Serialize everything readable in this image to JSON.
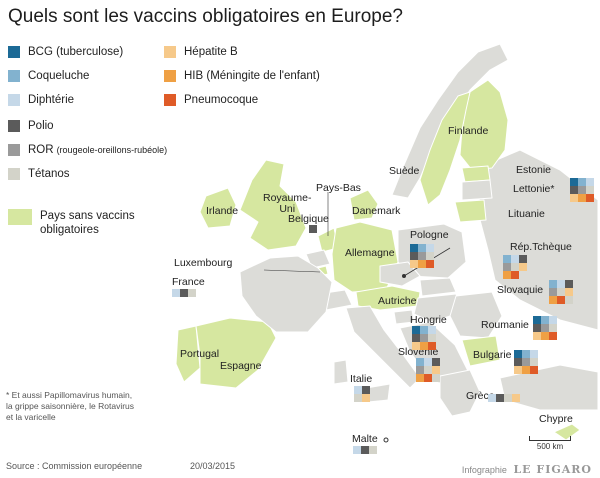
{
  "title": "Quels sont les vaccins obligatoires en Europe?",
  "colors": {
    "bcg": "#1c6a96",
    "coqueluche": "#82b2cf",
    "diphterie": "#c5d8e8",
    "polio": "#5b5b5b",
    "ror": "#9a9a9a",
    "tetanos": "#d3d3c9",
    "hepatite_b": "#f6c98a",
    "hib": "#efa044",
    "pneumocoque": "#df5b27",
    "sans_vaccins": "#d6e7a0",
    "other_country": "#dcdcd8",
    "outside_country": "#ffffff"
  },
  "legend": {
    "bcg": "BCG (tuberculose)",
    "coqueluche": "Coqueluche",
    "diphterie": "Diphtérie",
    "polio": "Polio",
    "ror": "ROR",
    "ror_detail": "(rougeole-oreillons-rubéole)",
    "tetanos": "Tétanos",
    "hepatite_b": "Hépatite B",
    "hib": "HIB (Méningite de l'enfant)",
    "pneumocoque": "Pneumocoque",
    "sans_vaccins_line1": "Pays sans vaccins",
    "sans_vaccins_line2": "obligatoires"
  },
  "countries": {
    "finlande": "Finlande",
    "suede": "Suède",
    "estonie": "Estonie",
    "lettonie": "Lettonie*",
    "lituanie": "Lituanie",
    "irlande": "Irlande",
    "royaume_uni_1": "Royaume-",
    "royaume_uni_2": "Uni",
    "pays_bas": "Pays-Bas",
    "belgique": "Belgique",
    "danemark": "Danemark",
    "pologne": "Pologne",
    "rep_tcheque": "Rép.Tchèque",
    "luxembourg": "Luxembourg",
    "allemagne": "Allemagne",
    "france": "France",
    "slovaquie": "Slovaquie",
    "autriche": "Autriche",
    "hongrie": "Hongrie",
    "roumanie": "Roumanie",
    "slovenie": "Slovénie",
    "bulgarie": "Bulgarie",
    "portugal": "Portugal",
    "espagne": "Espagne",
    "italie": "Italie",
    "grece": "Grèce",
    "chypre": "Chypre",
    "malte": "Malte"
  },
  "vaccine_grids": [
    {
      "country": "lettonie",
      "cols": 3,
      "cells": [
        "bcg",
        "coqueluche",
        "diphterie",
        "polio",
        "ror",
        "tetanos",
        "hepatite_b",
        "hib",
        "pneumocoque"
      ]
    },
    {
      "country": "belgique",
      "cols": 1,
      "cells": [
        "polio"
      ]
    },
    {
      "country": "pologne",
      "cols": 3,
      "cells": [
        "bcg",
        "coqueluche",
        "diphterie",
        "polio",
        "ror",
        "tetanos",
        "hepatite_b",
        "hib",
        "pneumocoque"
      ]
    },
    {
      "country": "rep_tcheque",
      "cols": 3,
      "cells": [
        "coqueluche",
        "diphterie",
        "polio",
        "ror",
        "tetanos",
        "hepatite_b",
        "hib",
        "pneumocoque"
      ]
    },
    {
      "country": "france",
      "cols": 3,
      "cells": [
        "diphterie",
        "polio",
        "tetanos"
      ]
    },
    {
      "country": "slovaquie",
      "cols": 3,
      "cells": [
        "coqueluche",
        "diphterie",
        "polio",
        "ror",
        "tetanos",
        "hepatite_b",
        "hib",
        "pneumocoque",
        "tetanos"
      ]
    },
    {
      "country": "hongrie",
      "cols": 3,
      "cells": [
        "bcg",
        "coqueluche",
        "diphterie",
        "polio",
        "ror",
        "tetanos",
        "hepatite_b",
        "hib",
        "pneumocoque"
      ]
    },
    {
      "country": "roumanie",
      "cols": 3,
      "cells": [
        "bcg",
        "coqueluche",
        "diphterie",
        "polio",
        "ror",
        "tetanos",
        "hepatite_b",
        "hib",
        "pneumocoque"
      ]
    },
    {
      "country": "slovenie",
      "cols": 3,
      "cells": [
        "coqueluche",
        "diphterie",
        "polio",
        "ror",
        "tetanos",
        "hepatite_b",
        "hib",
        "pneumocoque",
        "tetanos"
      ]
    },
    {
      "country": "bulgarie",
      "cols": 3,
      "cells": [
        "bcg",
        "coqueluche",
        "diphterie",
        "polio",
        "ror",
        "tetanos",
        "hepatite_b",
        "hib",
        "pneumocoque"
      ]
    },
    {
      "country": "italie",
      "cols": 2,
      "cells": [
        "diphterie",
        "polio",
        "tetanos",
        "hepatite_b"
      ]
    },
    {
      "country": "grece",
      "cols": 4,
      "cells": [
        "diphterie",
        "polio",
        "tetanos",
        "hepatite_b"
      ]
    },
    {
      "country": "malte",
      "cols": 3,
      "cells": [
        "diphterie",
        "polio",
        "tetanos"
      ]
    }
  ],
  "footnote": {
    "line1": "* Et aussi Papillomavirus humain,",
    "line2": "la grippe saisonnière, le Rotavirus",
    "line3": "et la varicelle"
  },
  "source": "Source : Commission européenne",
  "date": "20/03/2015",
  "brand_infographie": "Infographie",
  "brand_figaro": "LE FIGARO",
  "scale_label": "500 km"
}
